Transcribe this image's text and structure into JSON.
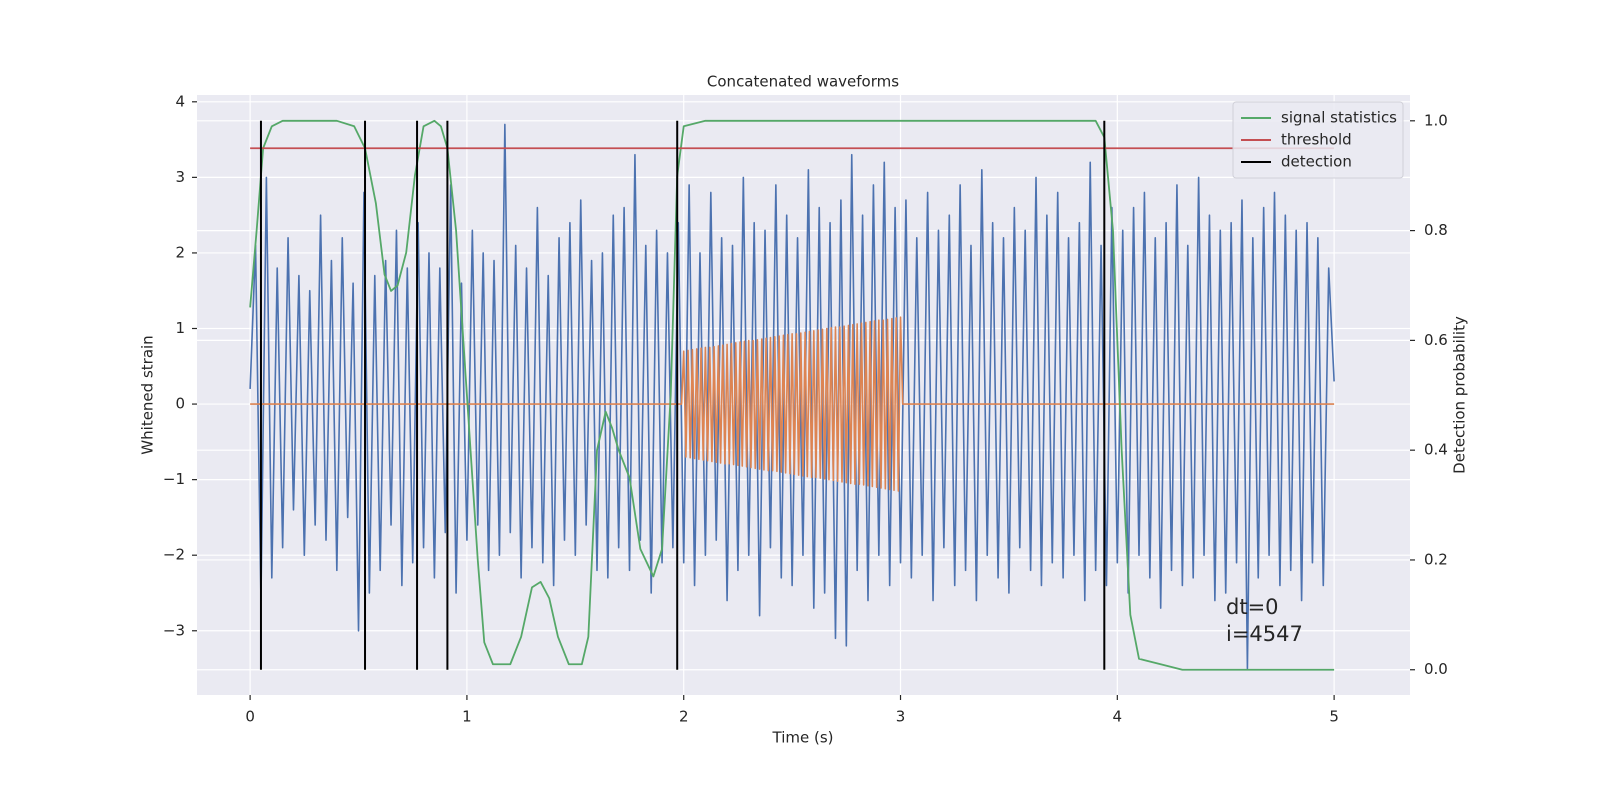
{
  "chart_data": {
    "type": "line",
    "title": "Concatenated waveforms",
    "xlabel": "Time (s)",
    "ylabel": "Whitened strain",
    "y2label": "Detection probability",
    "xlim": [
      -0.245,
      5.35
    ],
    "xticks": [
      0,
      1,
      2,
      3,
      4,
      5
    ],
    "ylim": [
      -3.85,
      4.09
    ],
    "yticks": [
      {
        "value": -3,
        "label": "−3"
      },
      {
        "value": -2,
        "label": "−2"
      },
      {
        "value": -1,
        "label": "−1"
      },
      0,
      1,
      2,
      3,
      4
    ],
    "y2lim": [
      -0.046,
      1.047
    ],
    "y2ticks": [
      {
        "value": 0,
        "label": "0.0"
      },
      0.2,
      0.4,
      0.6,
      0.8,
      {
        "value": 1,
        "label": "1.0"
      }
    ],
    "grid": true,
    "legend": "upper right",
    "annotation": [
      "dt=0",
      "i=4547"
    ],
    "series": [
      {
        "color": "#4c72b0",
        "x": [
          0,
          0.025,
          0.05,
          0.075,
          0.1,
          0.125,
          0.15,
          0.175,
          0.2,
          0.225,
          0.25,
          0.275,
          0.3,
          0.325,
          0.35,
          0.375,
          0.4,
          0.425,
          0.45,
          0.475,
          0.5,
          0.525,
          0.55,
          0.575,
          0.6,
          0.625,
          0.65,
          0.675,
          0.7,
          0.725,
          0.75,
          0.775,
          0.8,
          0.825,
          0.85,
          0.875,
          0.9,
          0.925,
          0.95,
          0.975,
          1,
          1.025,
          1.05,
          1.075,
          1.1,
          1.125,
          1.15,
          1.175,
          1.2,
          1.225,
          1.25,
          1.275,
          1.3,
          1.325,
          1.35,
          1.375,
          1.4,
          1.425,
          1.45,
          1.475,
          1.5,
          1.525,
          1.55,
          1.575,
          1.6,
          1.625,
          1.65,
          1.675,
          1.7,
          1.725,
          1.75,
          1.775,
          1.8,
          1.825,
          1.85,
          1.875,
          1.9,
          1.925,
          1.95,
          1.975,
          2,
          2.025,
          2.05,
          2.075,
          2.1,
          2.125,
          2.15,
          2.175,
          2.2,
          2.225,
          2.25,
          2.275,
          2.3,
          2.325,
          2.35,
          2.375,
          2.4,
          2.425,
          2.45,
          2.475,
          2.5,
          2.525,
          2.55,
          2.575,
          2.6,
          2.625,
          2.65,
          2.675,
          2.7,
          2.725,
          2.75,
          2.775,
          2.8,
          2.825,
          2.85,
          2.875,
          2.9,
          2.925,
          2.95,
          2.975,
          3,
          3.025,
          3.05,
          3.075,
          3.1,
          3.125,
          3.15,
          3.175,
          3.2,
          3.225,
          3.25,
          3.275,
          3.3,
          3.325,
          3.35,
          3.375,
          3.4,
          3.425,
          3.45,
          3.475,
          3.5,
          3.525,
          3.55,
          3.575,
          3.6,
          3.625,
          3.65,
          3.675,
          3.7,
          3.725,
          3.75,
          3.775,
          3.8,
          3.825,
          3.85,
          3.875,
          3.9,
          3.925,
          3.95,
          3.975,
          4,
          4.025,
          4.05,
          4.075,
          4.1,
          4.125,
          4.15,
          4.175,
          4.2,
          4.225,
          4.25,
          4.275,
          4.3,
          4.325,
          4.35,
          4.375,
          4.4,
          4.425,
          4.45,
          4.475,
          4.5,
          4.525,
          4.55,
          4.575,
          4.6,
          4.625,
          4.65,
          4.675,
          4.7,
          4.725,
          4.75,
          4.775,
          4.8,
          4.825,
          4.85,
          4.875,
          4.9,
          4.925,
          4.95,
          4.975,
          5
        ],
        "values": [
          0.2,
          2.1,
          -2.6,
          3.0,
          -2.3,
          1.8,
          -1.9,
          2.2,
          -1.4,
          1.7,
          -2.0,
          1.5,
          -1.6,
          2.5,
          -1.8,
          1.9,
          -2.2,
          2.2,
          -1.5,
          1.6,
          -3.0,
          2.8,
          -2.5,
          1.7,
          -2.2,
          1.9,
          -1.6,
          2.3,
          -2.4,
          1.8,
          -2.1,
          2.4,
          -1.9,
          2.0,
          -2.3,
          1.8,
          -1.7,
          2.9,
          -2.5,
          1.6,
          -1.8,
          2.3,
          -1.6,
          2.0,
          -2.2,
          1.9,
          -2.0,
          3.7,
          -1.7,
          2.1,
          -2.3,
          1.8,
          -1.9,
          2.6,
          -2.1,
          1.7,
          -2.4,
          2.2,
          -1.8,
          2.4,
          -2.0,
          2.7,
          -1.6,
          1.9,
          -2.2,
          2.0,
          -2.3,
          2.5,
          -1.9,
          2.6,
          -2.2,
          3.3,
          -1.8,
          2.1,
          -2.5,
          2.3,
          -2.1,
          2.0,
          -1.9,
          2.4,
          -2.1,
          2.9,
          -2.4,
          2.0,
          -2.0,
          2.8,
          -1.8,
          2.2,
          -2.6,
          2.1,
          -2.2,
          3.0,
          -2.0,
          2.4,
          -2.8,
          2.3,
          -1.9,
          2.9,
          -2.3,
          2.5,
          -2.4,
          2.2,
          -2.0,
          3.1,
          -2.7,
          2.6,
          -2.5,
          2.4,
          -3.1,
          2.7,
          -3.2,
          3.3,
          -2.2,
          2.5,
          -2.6,
          2.9,
          -2.0,
          3.2,
          -2.4,
          2.6,
          -2.1,
          2.7,
          -2.3,
          2.2,
          -2.0,
          2.8,
          -2.6,
          2.3,
          -1.9,
          2.5,
          -2.4,
          2.9,
          -2.2,
          2.1,
          -2.6,
          3.1,
          -2.0,
          2.4,
          -2.3,
          2.2,
          -2.5,
          2.6,
          -1.9,
          2.3,
          -2.2,
          3.0,
          -2.4,
          2.5,
          -2.1,
          2.8,
          -2.3,
          2.2,
          -2.0,
          2.4,
          -2.6,
          3.2,
          -2.2,
          2.1,
          -2.4,
          2.6,
          -2.1,
          2.3,
          -2.5,
          2.6,
          -2.0,
          2.8,
          -2.3,
          2.2,
          -2.7,
          2.4,
          -2.2,
          2.9,
          -2.4,
          2.1,
          -2.3,
          3.0,
          -2.0,
          2.5,
          -2.6,
          2.3,
          -2.5,
          2.4,
          -2.1,
          2.7,
          -3.5,
          2.2,
          -2.3,
          2.6,
          -2.0,
          2.8,
          -2.4,
          2.5,
          -2.2,
          2.3,
          -2.6,
          2.4,
          -2.1,
          2.2,
          -2.4,
          1.8,
          0.3
        ]
      },
      {
        "color": "#dd8452",
        "x": [
          0,
          1.99,
          2,
          2.01,
          2.02,
          2.03,
          2.04,
          2.05,
          2.06,
          2.07,
          2.08,
          2.09,
          2.1,
          2.11,
          2.12,
          2.13,
          2.14,
          2.15,
          2.16,
          2.17,
          2.18,
          2.19,
          2.2,
          2.21,
          2.22,
          2.23,
          2.24,
          2.25,
          2.26,
          2.27,
          2.28,
          2.29,
          2.3,
          2.31,
          2.32,
          2.33,
          2.34,
          2.35,
          2.36,
          2.37,
          2.38,
          2.39,
          2.4,
          2.41,
          2.42,
          2.43,
          2.44,
          2.45,
          2.46,
          2.47,
          2.48,
          2.49,
          2.5,
          2.51,
          2.52,
          2.53,
          2.54,
          2.55,
          2.56,
          2.57,
          2.58,
          2.59,
          2.6,
          2.61,
          2.62,
          2.63,
          2.64,
          2.65,
          2.66,
          2.67,
          2.68,
          2.69,
          2.7,
          2.71,
          2.72,
          2.73,
          2.74,
          2.75,
          2.76,
          2.77,
          2.78,
          2.79,
          2.8,
          2.81,
          2.82,
          2.83,
          2.84,
          2.85,
          2.86,
          2.87,
          2.88,
          2.89,
          2.9,
          2.91,
          2.92,
          2.93,
          2.94,
          2.95,
          2.96,
          2.97,
          2.98,
          2.99,
          3,
          3.01,
          5
        ],
        "values": [
          0,
          0,
          0.7,
          -0.7,
          0.71,
          -0.71,
          0.72,
          -0.72,
          0.73,
          -0.73,
          0.74,
          -0.74,
          0.75,
          -0.75,
          0.75,
          -0.76,
          0.76,
          -0.77,
          0.77,
          -0.78,
          0.78,
          -0.79,
          0.79,
          -0.79,
          0.8,
          -0.8,
          0.81,
          -0.81,
          0.82,
          -0.82,
          0.83,
          -0.83,
          0.84,
          -0.84,
          0.84,
          -0.85,
          0.85,
          -0.86,
          0.86,
          -0.87,
          0.87,
          -0.88,
          0.88,
          -0.88,
          0.89,
          -0.89,
          0.9,
          -0.9,
          0.91,
          -0.91,
          0.92,
          -0.92,
          0.93,
          -0.93,
          0.93,
          -0.94,
          0.94,
          -0.95,
          0.95,
          -0.96,
          0.96,
          -0.97,
          0.97,
          -0.97,
          0.98,
          -0.98,
          0.99,
          -0.99,
          1.0,
          -1.0,
          1.01,
          -1.01,
          1.02,
          -1.02,
          1.02,
          -1.03,
          1.03,
          -1.04,
          1.04,
          -1.05,
          1.05,
          -1.06,
          1.06,
          -1.06,
          1.07,
          -1.07,
          1.08,
          -1.08,
          1.09,
          -1.09,
          1.1,
          -1.1,
          1.11,
          -1.11,
          1.11,
          -1.12,
          1.12,
          -1.13,
          1.13,
          -1.14,
          1.14,
          -1.15,
          1.15,
          0,
          0
        ]
      },
      {
        "name": "signal statistics",
        "color": "#55a868",
        "axis": "y2",
        "x": [
          0,
          0.03,
          0.06,
          0.1,
          0.15,
          0.4,
          0.48,
          0.53,
          0.58,
          0.62,
          0.65,
          0.68,
          0.72,
          0.76,
          0.8,
          0.85,
          0.88,
          0.91,
          0.95,
          1.0,
          1.05,
          1.08,
          1.12,
          1.2,
          1.25,
          1.3,
          1.34,
          1.38,
          1.42,
          1.47,
          1.53,
          1.56,
          1.6,
          1.64,
          1.67,
          1.7,
          1.75,
          1.8,
          1.86,
          1.9,
          1.94,
          1.97,
          2.0,
          2.1,
          2.5,
          3.5,
          3.9,
          3.94,
          3.98,
          4.02,
          4.06,
          4.1,
          4.2,
          4.3,
          5.0
        ],
        "values": [
          0.66,
          0.8,
          0.95,
          0.99,
          1.0,
          1.0,
          0.99,
          0.95,
          0.85,
          0.72,
          0.69,
          0.7,
          0.76,
          0.9,
          0.99,
          1.0,
          0.99,
          0.95,
          0.8,
          0.5,
          0.2,
          0.05,
          0.01,
          0.01,
          0.06,
          0.15,
          0.16,
          0.13,
          0.06,
          0.01,
          0.01,
          0.06,
          0.4,
          0.47,
          0.44,
          0.4,
          0.35,
          0.22,
          0.17,
          0.22,
          0.5,
          0.9,
          0.99,
          1.0,
          1.0,
          1.0,
          1.0,
          0.97,
          0.8,
          0.4,
          0.1,
          0.02,
          0.01,
          0.0,
          0.0
        ]
      },
      {
        "name": "threshold",
        "color": "#c44e52",
        "axis": "y2",
        "x": [
          0,
          5
        ],
        "values": [
          0.95,
          0.95
        ]
      },
      {
        "name": "detection",
        "color": "#000000",
        "axis": "y2",
        "type": "vline",
        "x": [
          0.05,
          0.53,
          0.77,
          0.91,
          1.97,
          3.94
        ],
        "ymin": 0,
        "ymax": 1
      }
    ]
  }
}
